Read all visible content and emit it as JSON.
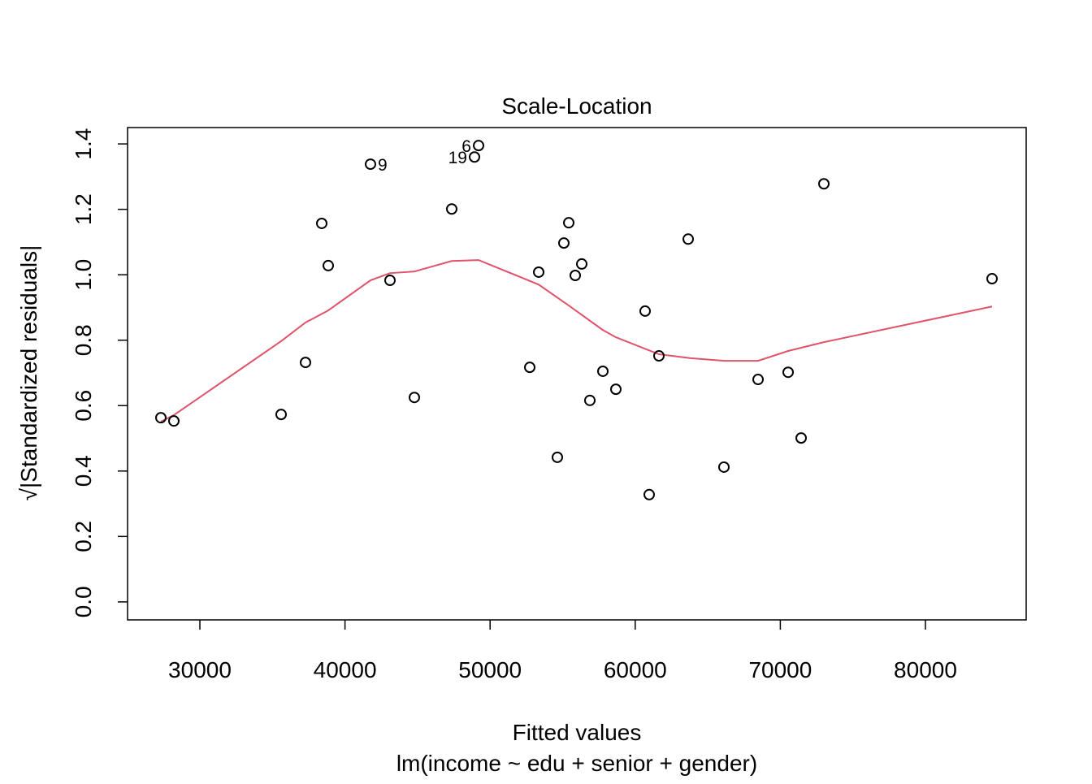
{
  "chart_data": {
    "type": "scatter",
    "title": "Scale-Location",
    "x_label": "Fitted values",
    "subtitle": "lm(income ~ edu + senior + gender)",
    "y_label": "√|Standardized residuals|",
    "xlim": [
      25017,
      86943
    ],
    "ylim": [
      -0.055,
      1.45
    ],
    "xticks": [
      30000,
      40000,
      50000,
      60000,
      70000,
      80000
    ],
    "yticks": [
      {
        "value": 0,
        "label": "0.0"
      },
      0.2,
      0.4,
      0.6,
      0.8,
      {
        "value": 1,
        "label": "1.0"
      },
      1.2,
      1.4
    ],
    "grid": false,
    "points": {
      "color": "#000000",
      "x": [
        27312,
        28208,
        35599,
        37279,
        38399,
        38847,
        41758,
        43102,
        44782,
        47357,
        48925,
        49205,
        52733,
        53349,
        54636,
        55084,
        55420,
        55868,
        56316,
        56876,
        57772,
        58667,
        60683,
        60963,
        61635,
        63651,
        66115,
        68466,
        70538,
        71434,
        73002,
        84591
      ],
      "y": [
        0.563,
        0.553,
        0.573,
        0.732,
        1.157,
        1.028,
        1.338,
        0.983,
        0.625,
        1.201,
        1.36,
        1.395,
        0.717,
        1.008,
        0.442,
        1.097,
        1.159,
        0.998,
        1.033,
        0.616,
        0.705,
        0.65,
        0.889,
        0.328,
        0.752,
        1.109,
        0.412,
        0.68,
        0.702,
        0.501,
        1.278,
        0.988
      ],
      "labels": [
        null,
        null,
        null,
        null,
        null,
        null,
        "9",
        null,
        null,
        null,
        "19",
        "6",
        null,
        null,
        null,
        null,
        null,
        null,
        null,
        null,
        null,
        null,
        null,
        null,
        null,
        null,
        null,
        null,
        null,
        null,
        null,
        null
      ]
    },
    "smooth": {
      "color": "#DF536B",
      "x": [
        27312,
        28208,
        35599,
        37279,
        38847,
        41758,
        43102,
        44782,
        47357,
        49205,
        53349,
        55420,
        57772,
        58667,
        61635,
        63820,
        66115,
        68466,
        70538,
        73002,
        84591
      ],
      "y": [
        0.551,
        0.571,
        0.797,
        0.854,
        0.891,
        0.983,
        1.005,
        1.01,
        1.042,
        1.045,
        0.97,
        0.906,
        0.831,
        0.809,
        0.757,
        0.745,
        0.737,
        0.737,
        0.767,
        0.794,
        0.903
      ]
    }
  }
}
